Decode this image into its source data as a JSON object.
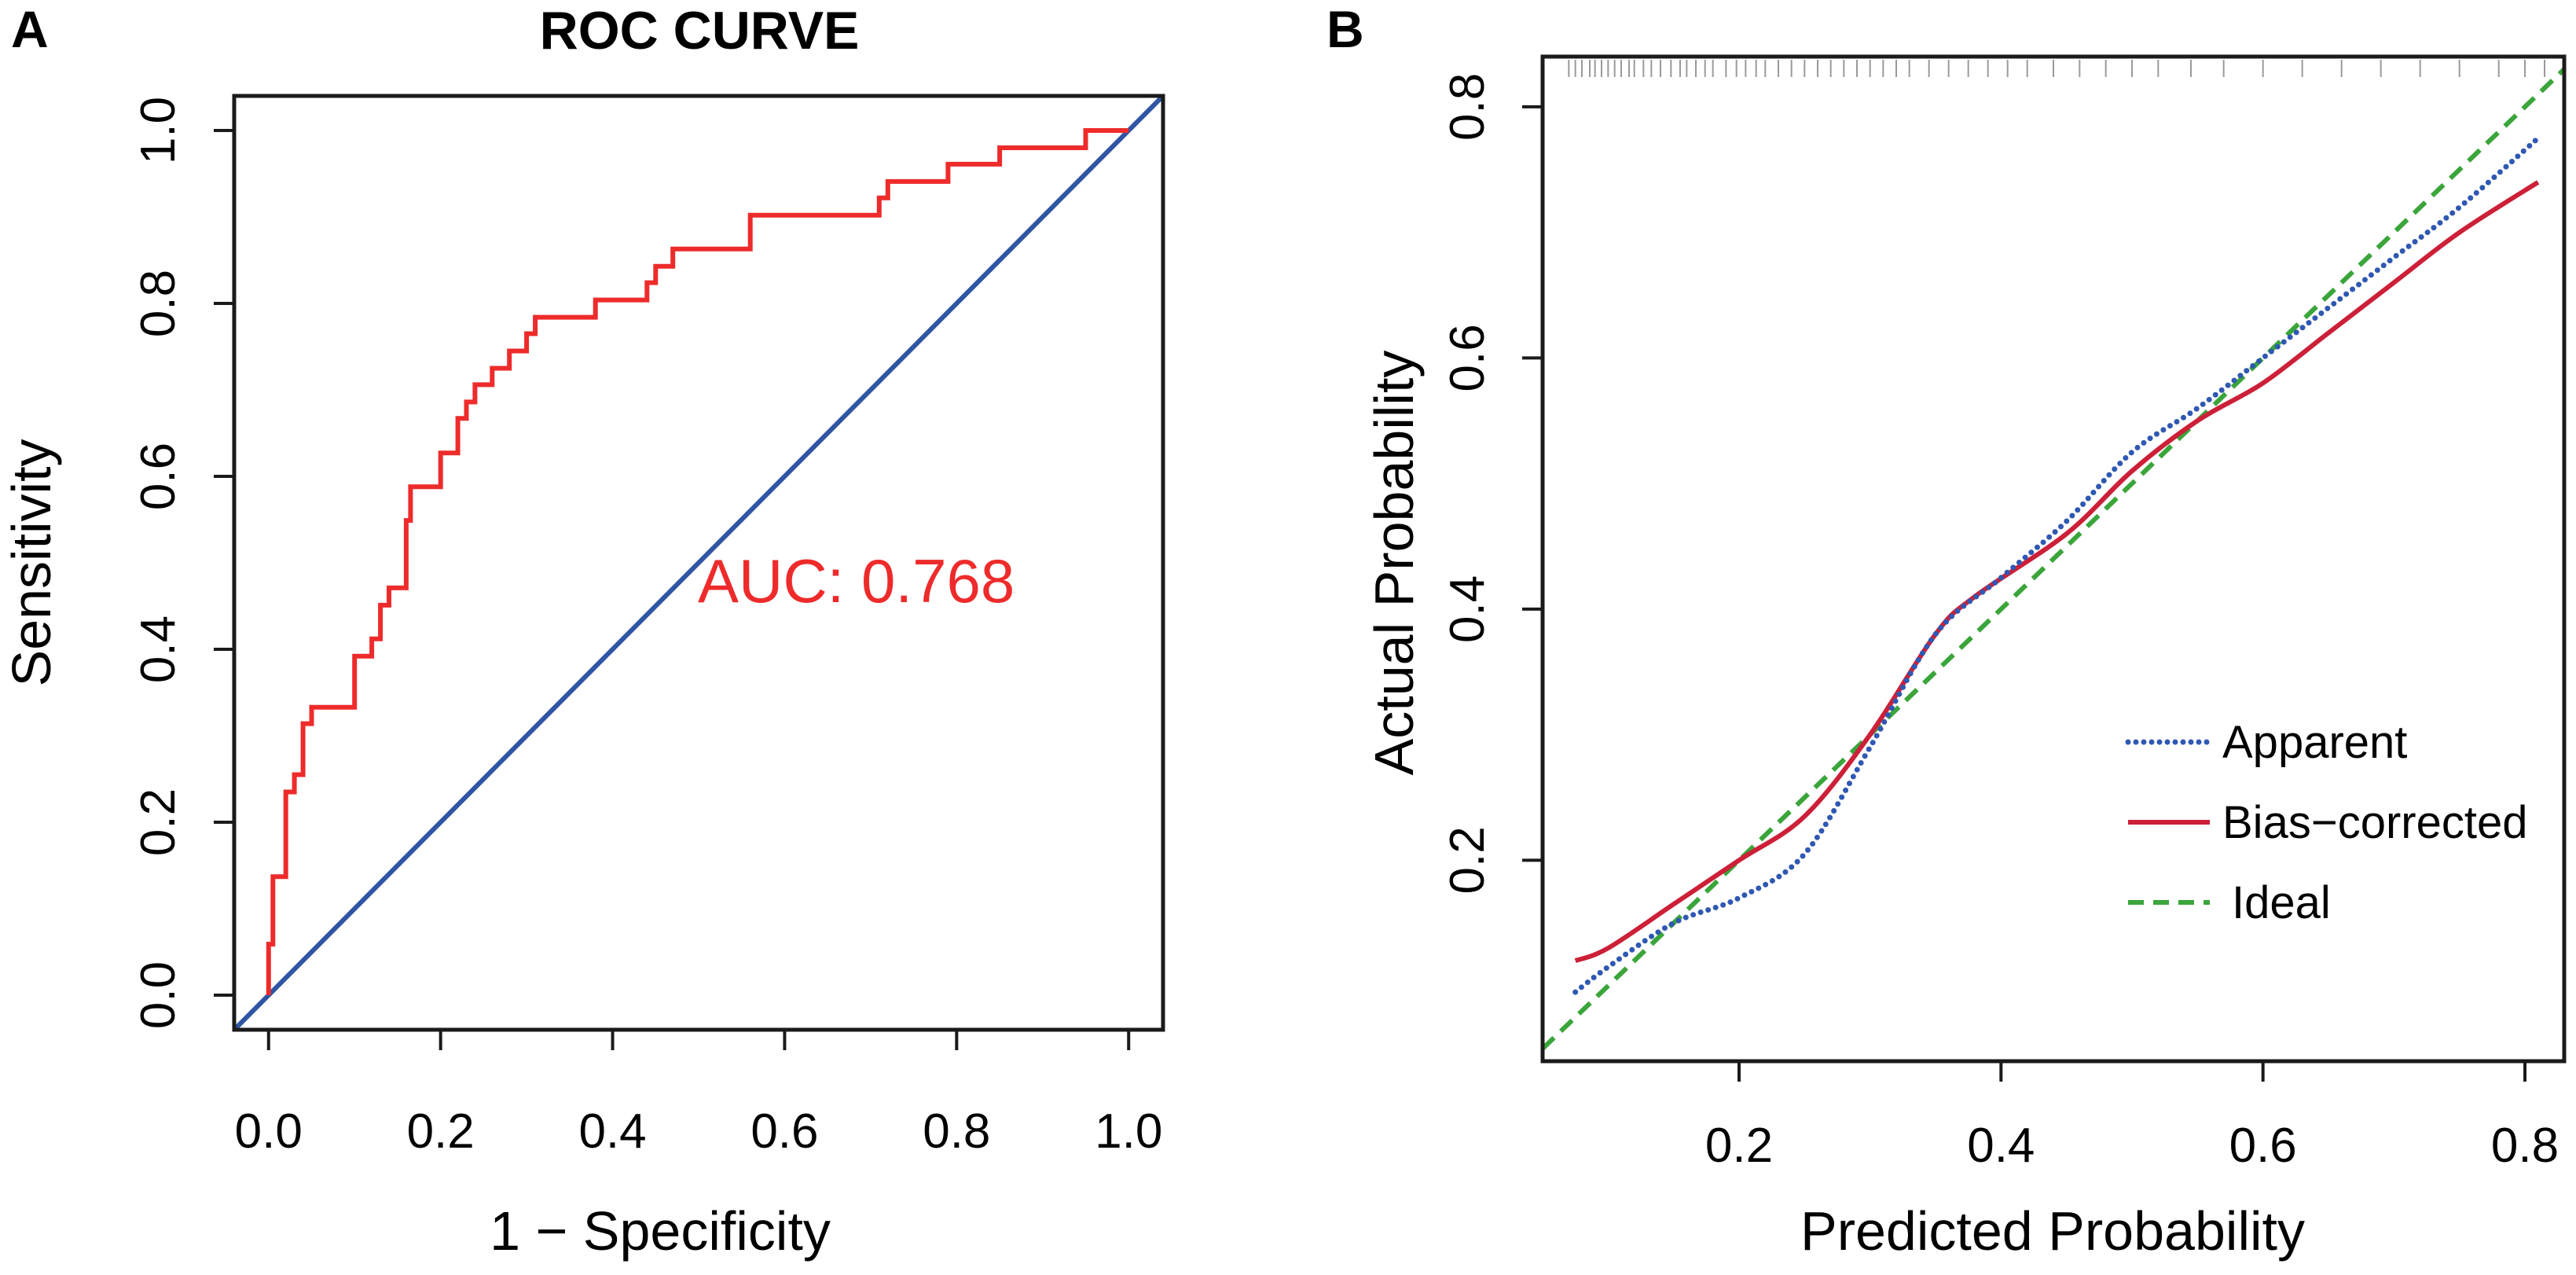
{
  "panels": {
    "a": {
      "letter": "A"
    },
    "b": {
      "letter": "B"
    }
  },
  "colors": {
    "roc": "#ee2b2b",
    "diagonal": "#2f55a4",
    "apparent": "#2f58b2",
    "bias_corrected": "#cc2038",
    "ideal": "#3aa53a",
    "axis": "#1a1a1a",
    "rug": "#9a9a9a"
  },
  "chart_data": [
    {
      "type": "line",
      "id": "roc",
      "title": "ROC CURVE",
      "xlabel": "1 − Specificity",
      "ylabel": "Sensitivity",
      "xlim": [
        -0.04,
        1.04
      ],
      "ylim": [
        -0.04,
        1.04
      ],
      "xticks": [
        "0.0",
        "0.2",
        "0.4",
        "0.6",
        "0.8",
        "1.0"
      ],
      "yticks": [
        "0.0",
        "0.2",
        "0.4",
        "0.6",
        "0.8",
        "1.0"
      ],
      "annotation": "AUC: 0.768",
      "auc": 0.768,
      "series": [
        {
          "name": "ROC",
          "x": [
            0,
            0,
            0.005,
            0.005,
            0.02,
            0.02,
            0.03,
            0.03,
            0.04,
            0.04,
            0.05,
            0.05,
            0.06,
            0.06,
            0.1,
            0.1,
            0.12,
            0.12,
            0.13,
            0.13,
            0.14,
            0.14,
            0.16,
            0.16,
            0.165,
            0.165,
            0.2,
            0.2,
            0.22,
            0.22,
            0.23,
            0.23,
            0.24,
            0.24,
            0.26,
            0.26,
            0.28,
            0.28,
            0.3,
            0.3,
            0.31,
            0.31,
            0.35,
            0.35,
            0.38,
            0.38,
            0.4,
            0.4,
            0.44,
            0.44,
            0.45,
            0.45,
            0.47,
            0.47,
            0.49,
            0.49,
            0.51,
            0.51,
            0.56,
            0.56,
            0.71,
            0.71,
            0.72,
            0.72,
            0.79,
            0.79,
            0.8,
            0.8,
            0.85,
            0.85,
            0.95,
            0.95,
            1.0
          ],
          "y": [
            0,
            0.059,
            0.059,
            0.137,
            0.137,
            0.235,
            0.235,
            0.255,
            0.255,
            0.314,
            0.314,
            0.333,
            0.333,
            0.333,
            0.333,
            0.392,
            0.392,
            0.412,
            0.412,
            0.451,
            0.451,
            0.471,
            0.471,
            0.549,
            0.549,
            0.588,
            0.588,
            0.627,
            0.627,
            0.667,
            0.667,
            0.686,
            0.686,
            0.706,
            0.706,
            0.725,
            0.725,
            0.745,
            0.745,
            0.765,
            0.765,
            0.784,
            0.784,
            0.784,
            0.784,
            0.804,
            0.804,
            0.804,
            0.804,
            0.824,
            0.824,
            0.843,
            0.843,
            0.863,
            0.863,
            0.863,
            0.863,
            0.863,
            0.863,
            0.902,
            0.902,
            0.922,
            0.922,
            0.941,
            0.941,
            0.961,
            0.961,
            0.961,
            0.961,
            0.98,
            0.98,
            1.0,
            1.0
          ]
        },
        {
          "name": "Reference",
          "x": [
            -0.04,
            1.04
          ],
          "y": [
            -0.04,
            1.04
          ]
        }
      ]
    },
    {
      "type": "line",
      "id": "calibration",
      "title": "",
      "xlabel": "Predicted Probability",
      "ylabel": "Actual Probability",
      "xlim": [
        0.05,
        0.83
      ],
      "ylim": [
        0.04,
        0.84
      ],
      "xticks": [
        "0.2",
        "0.4",
        "0.6",
        "0.8"
      ],
      "yticks": [
        "0.2",
        "0.4",
        "0.6",
        "0.8"
      ],
      "legend_position": "bottom-right",
      "legend": [
        "Apparent",
        "Bias−corrected",
        "Ideal"
      ],
      "series": [
        {
          "name": "Apparent",
          "x": [
            0.075,
            0.1,
            0.15,
            0.2,
            0.25,
            0.3,
            0.35,
            0.4,
            0.45,
            0.5,
            0.55,
            0.6,
            0.65,
            0.7,
            0.75,
            0.81
          ],
          "y": [
            0.095,
            0.115,
            0.15,
            0.17,
            0.205,
            0.29,
            0.38,
            0.425,
            0.47,
            0.525,
            0.56,
            0.6,
            0.64,
            0.68,
            0.72,
            0.775
          ]
        },
        {
          "name": "Bias−corrected",
          "x": [
            0.075,
            0.1,
            0.15,
            0.2,
            0.25,
            0.3,
            0.35,
            0.38,
            0.45,
            0.5,
            0.55,
            0.6,
            0.65,
            0.7,
            0.75,
            0.81
          ],
          "y": [
            0.12,
            0.13,
            0.165,
            0.2,
            0.235,
            0.3,
            0.38,
            0.41,
            0.46,
            0.51,
            0.55,
            0.58,
            0.62,
            0.66,
            0.7,
            0.74
          ]
        },
        {
          "name": "Ideal",
          "x": [
            0.05,
            0.83
          ],
          "y": [
            0.05,
            0.83
          ]
        }
      ],
      "rug": [
        0.07,
        0.075,
        0.08,
        0.086,
        0.09,
        0.095,
        0.1,
        0.105,
        0.11,
        0.116,
        0.12,
        0.127,
        0.133,
        0.14,
        0.148,
        0.155,
        0.16,
        0.167,
        0.174,
        0.18,
        0.19,
        0.198,
        0.205,
        0.213,
        0.22,
        0.23,
        0.24,
        0.25,
        0.26,
        0.27,
        0.28,
        0.29,
        0.3,
        0.31,
        0.32,
        0.33,
        0.345,
        0.36,
        0.375,
        0.39,
        0.405,
        0.42,
        0.44,
        0.46,
        0.48,
        0.5,
        0.52,
        0.545,
        0.57,
        0.6,
        0.63,
        0.66,
        0.69,
        0.72,
        0.75,
        0.78,
        0.8,
        0.815
      ]
    }
  ]
}
